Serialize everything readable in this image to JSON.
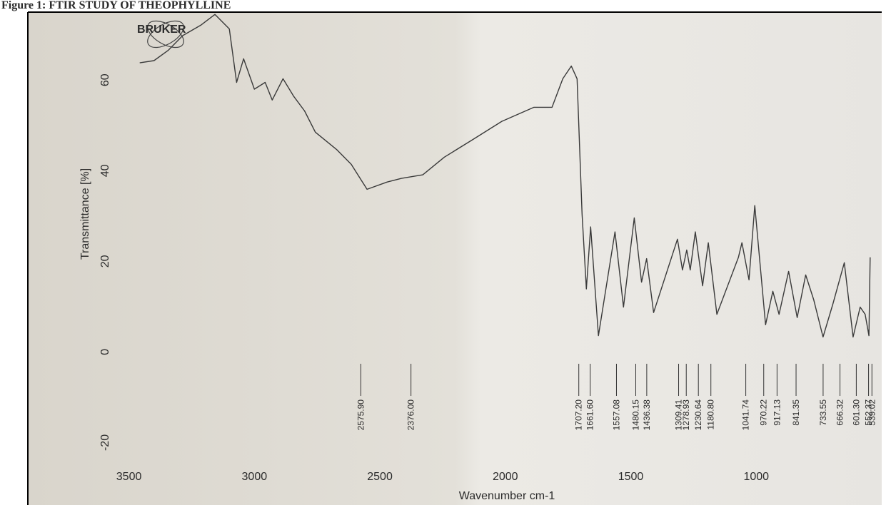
{
  "chart_data": {
    "type": "line",
    "title": "Figure 1: FTIR STUDY OF THEOPHYLLINE",
    "brand": "BRUKER",
    "x_label": "Wavenumber cm-1",
    "y_label": "Transmittance [%]",
    "xlim": [
      3900,
      500
    ],
    "ylim": [
      -30,
      75
    ],
    "xticks": [
      3500,
      3000,
      2500,
      2000,
      1500,
      1000
    ],
    "yticks": [
      -20,
      0,
      20,
      40,
      60
    ],
    "color": "#3a3a3a",
    "x": [
      3457,
      3400,
      3343,
      3286,
      3214,
      3157,
      3100,
      3071,
      3043,
      3000,
      2957,
      2929,
      2886,
      2843,
      2800,
      2757,
      2671,
      2614,
      2551,
      2471,
      2414,
      2329,
      2243,
      2129,
      2014,
      1886,
      1814,
      1771,
      1737,
      1714,
      1694,
      1677,
      1660,
      1629,
      1563,
      1529,
      1486,
      1457,
      1437,
      1409,
      1314,
      1294,
      1277,
      1263,
      1243,
      1214,
      1191,
      1157,
      1071,
      1057,
      1029,
      1006,
      963,
      934,
      909,
      871,
      837,
      803,
      771,
      734,
      694,
      649,
      614,
      586,
      566,
      551,
      546
    ],
    "values": [
      63.8,
      64.3,
      66.6,
      69.8,
      72.1,
      74.5,
      71.3,
      59.5,
      64.7,
      58.0,
      59.5,
      55.6,
      60.3,
      56.4,
      53.2,
      48.5,
      44.6,
      41.4,
      35.9,
      37.5,
      38.3,
      39.1,
      43.0,
      46.9,
      50.9,
      54.0,
      54.0,
      60.3,
      63.1,
      60.3,
      30.4,
      13.9,
      27.6,
      3.6,
      26.5,
      9.9,
      29.6,
      15.4,
      20.6,
      8.7,
      24.9,
      18.1,
      22.5,
      18.1,
      26.5,
      14.6,
      24.1,
      8.3,
      20.9,
      24.1,
      15.9,
      32.3,
      6.0,
      13.4,
      8.3,
      17.8,
      7.6,
      17.0,
      11.5,
      3.3,
      10.7,
      19.7,
      3.3,
      9.9,
      8.3,
      3.6,
      20.9
    ],
    "peaks": [
      {
        "value": 2575.9,
        "label": "2575.90"
      },
      {
        "value": 2376.0,
        "label": "2376.00"
      },
      {
        "value": 1707.2,
        "label": "1707.20"
      },
      {
        "value": 1661.6,
        "label": "1661.60"
      },
      {
        "value": 1557.08,
        "label": "1557.08"
      },
      {
        "value": 1480.15,
        "label": "1480.15"
      },
      {
        "value": 1436.38,
        "label": "1436.38"
      },
      {
        "value": 1309.41,
        "label": "1309.41"
      },
      {
        "value": 1278.93,
        "label": "1278.93"
      },
      {
        "value": 1230.64,
        "label": "1230.64"
      },
      {
        "value": 1180.8,
        "label": "1180.80"
      },
      {
        "value": 1041.74,
        "label": "1041.74"
      },
      {
        "value": 970.22,
        "label": "970.22"
      },
      {
        "value": 917.13,
        "label": "917.13"
      },
      {
        "value": 841.35,
        "label": "841.35"
      },
      {
        "value": 733.55,
        "label": "733.55"
      },
      {
        "value": 666.32,
        "label": "666.32"
      },
      {
        "value": 601.3,
        "label": "601.30"
      },
      {
        "value": 552.37,
        "label": "552.37"
      },
      {
        "value": 539.02,
        "label": "539.02"
      }
    ]
  }
}
